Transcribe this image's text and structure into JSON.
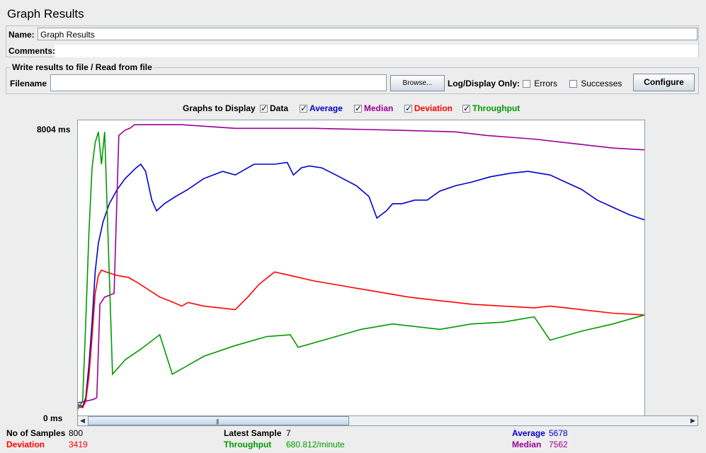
{
  "window": {
    "title": "Graph Results"
  },
  "name_field": {
    "label": "Name:",
    "value": "Graph Results"
  },
  "comments_field": {
    "label": "Comments:",
    "value": ""
  },
  "file_panel": {
    "legend": "Write results to file / Read from file",
    "filename_label": "Filename",
    "filename_value": "",
    "browse_label": "Browse...",
    "log_display_label": "Log/Display Only:",
    "errors_label": "Errors",
    "errors_checked": false,
    "successes_label": "Successes",
    "successes_checked": false,
    "configure_label": "Configure"
  },
  "graphs_to_display": {
    "label": "Graphs to Display",
    "items": [
      {
        "label": "Data",
        "checked": true,
        "color": "#000000"
      },
      {
        "label": "Average",
        "checked": true,
        "color": "#0000cc"
      },
      {
        "label": "Median",
        "checked": true,
        "color": "#990099"
      },
      {
        "label": "Deviation",
        "checked": true,
        "color": "#ff0000"
      },
      {
        "label": "Throughput",
        "checked": true,
        "color": "#009900"
      }
    ]
  },
  "axis": {
    "y_max_label": "8004 ms",
    "y_min_label": "0 ms"
  },
  "chart_data": {
    "type": "line",
    "ylim": [
      0,
      8004
    ],
    "y_unit": "ms",
    "series": [
      {
        "name": "Average",
        "color": "#0000cc",
        "points": [
          [
            0,
            200
          ],
          [
            3,
            150
          ],
          [
            5,
            400
          ],
          [
            7,
            1300
          ],
          [
            9,
            2500
          ],
          [
            11,
            3900
          ],
          [
            13,
            4700
          ],
          [
            16,
            5300
          ],
          [
            20,
            5800
          ],
          [
            25,
            6200
          ],
          [
            30,
            6500
          ],
          [
            37,
            6800
          ],
          [
            40,
            6900
          ],
          [
            43,
            6700
          ],
          [
            47,
            5900
          ],
          [
            50,
            5600
          ],
          [
            55,
            5800
          ],
          [
            62,
            6000
          ],
          [
            70,
            6200
          ],
          [
            80,
            6500
          ],
          [
            92,
            6700
          ],
          [
            100,
            6600
          ],
          [
            108,
            6800
          ],
          [
            112,
            6900
          ],
          [
            120,
            6900
          ],
          [
            125,
            6900
          ],
          [
            133,
            6950
          ],
          [
            137,
            6600
          ],
          [
            142,
            6800
          ],
          [
            147,
            6850
          ],
          [
            155,
            6800
          ],
          [
            164,
            6600
          ],
          [
            177,
            6300
          ],
          [
            185,
            6000
          ],
          [
            190,
            5400
          ],
          [
            196,
            5600
          ],
          [
            200,
            5800
          ],
          [
            206,
            5800
          ],
          [
            214,
            5900
          ],
          [
            222,
            5900
          ],
          [
            230,
            6150
          ],
          [
            240,
            6300
          ],
          [
            250,
            6400
          ],
          [
            262,
            6550
          ],
          [
            275,
            6650
          ],
          [
            286,
            6700
          ],
          [
            300,
            6600
          ],
          [
            310,
            6400
          ],
          [
            320,
            6200
          ],
          [
            330,
            5900
          ],
          [
            340,
            5700
          ],
          [
            350,
            5500
          ],
          [
            360,
            5350
          ]
        ]
      },
      {
        "name": "Median",
        "color": "#990099",
        "points": [
          [
            0,
            250
          ],
          [
            5,
            300
          ],
          [
            10,
            350
          ],
          [
            12,
            400
          ],
          [
            14,
            3000
          ],
          [
            17,
            3200
          ],
          [
            23,
            3300
          ],
          [
            26,
            7700
          ],
          [
            30,
            7850
          ],
          [
            33,
            7900
          ],
          [
            36,
            8000
          ],
          [
            55,
            8000
          ],
          [
            66,
            8000
          ],
          [
            100,
            7900
          ],
          [
            150,
            7900
          ],
          [
            200,
            7850
          ],
          [
            240,
            7800
          ],
          [
            260,
            7700
          ],
          [
            290,
            7600
          ],
          [
            310,
            7500
          ],
          [
            340,
            7350
          ],
          [
            360,
            7300
          ]
        ]
      },
      {
        "name": "Deviation",
        "color": "#ff0000",
        "points": [
          [
            0,
            150
          ],
          [
            3,
            120
          ],
          [
            5,
            300
          ],
          [
            7,
            1000
          ],
          [
            9,
            2100
          ],
          [
            11,
            3300
          ],
          [
            13,
            3800
          ],
          [
            15,
            3950
          ],
          [
            18,
            3900
          ],
          [
            25,
            3800
          ],
          [
            32,
            3750
          ],
          [
            38,
            3600
          ],
          [
            45,
            3400
          ],
          [
            52,
            3200
          ],
          [
            58,
            3100
          ],
          [
            66,
            2950
          ],
          [
            70,
            3050
          ],
          [
            80,
            2950
          ],
          [
            90,
            2900
          ],
          [
            100,
            2850
          ],
          [
            108,
            3200
          ],
          [
            115,
            3550
          ],
          [
            125,
            3900
          ],
          [
            135,
            3800
          ],
          [
            150,
            3650
          ],
          [
            170,
            3500
          ],
          [
            190,
            3350
          ],
          [
            210,
            3200
          ],
          [
            230,
            3100
          ],
          [
            250,
            3000
          ],
          [
            270,
            2950
          ],
          [
            290,
            2900
          ],
          [
            300,
            2950
          ],
          [
            320,
            2850
          ],
          [
            340,
            2750
          ],
          [
            360,
            2700
          ]
        ]
      },
      {
        "name": "Throughput",
        "color": "#009900",
        "points": [
          [
            0,
            80
          ],
          [
            3,
            300
          ],
          [
            5,
            2500
          ],
          [
            7,
            5000
          ],
          [
            9,
            6800
          ],
          [
            11,
            7500
          ],
          [
            13,
            7800
          ],
          [
            15,
            6900
          ],
          [
            17,
            7800
          ],
          [
            22,
            1050
          ],
          [
            30,
            1450
          ],
          [
            40,
            1750
          ],
          [
            52,
            2150
          ],
          [
            60,
            1050
          ],
          [
            80,
            1550
          ],
          [
            100,
            1850
          ],
          [
            120,
            2100
          ],
          [
            135,
            2150
          ],
          [
            140,
            1800
          ],
          [
            160,
            2050
          ],
          [
            180,
            2300
          ],
          [
            200,
            2450
          ],
          [
            230,
            2300
          ],
          [
            250,
            2450
          ],
          [
            270,
            2500
          ],
          [
            290,
            2650
          ],
          [
            300,
            2000
          ],
          [
            320,
            2250
          ],
          [
            340,
            2450
          ],
          [
            360,
            2700
          ]
        ]
      }
    ]
  },
  "summary": {
    "samples_label": "No of Samples",
    "samples_value": "800",
    "latest_label": "Latest Sample",
    "latest_value": "7",
    "average_label": "Average",
    "average_value": "5678",
    "deviation_label": "Deviation",
    "deviation_value": "3419",
    "throughput_label": "Throughput",
    "throughput_value": "680.812/minute",
    "median_label": "Median",
    "median_value": "7562"
  }
}
